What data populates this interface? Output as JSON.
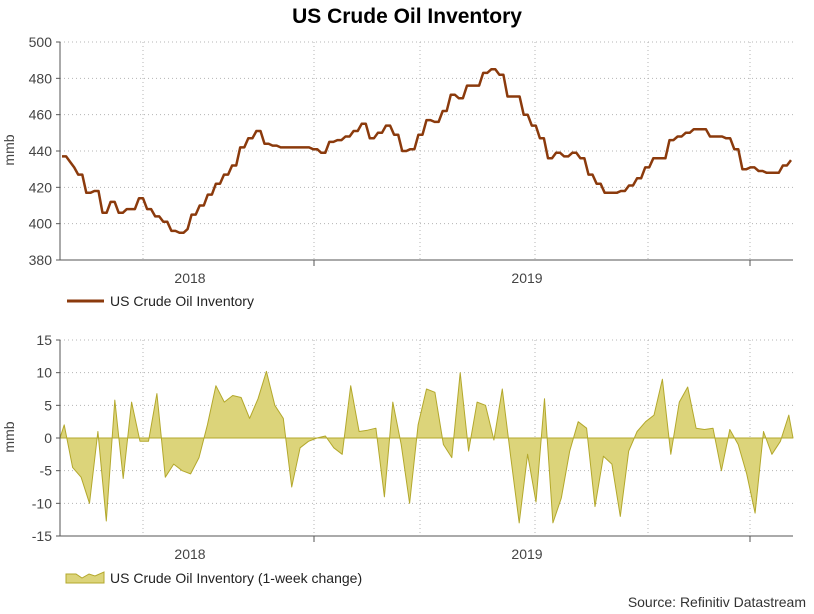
{
  "title": "US Crude Oil Inventory",
  "source": "Source: Refinitiv Datastream",
  "colors": {
    "level_line": "#8b3a0c",
    "change_fill": "#dcd47a",
    "change_stroke": "#b3a82c"
  },
  "chart_data": [
    {
      "type": "line",
      "ylabel": "mmb",
      "ylim": [
        380,
        500
      ],
      "yticks": [
        "380",
        "400",
        "420",
        "440",
        "460",
        "480",
        "500"
      ],
      "xticks": [
        "2018",
        "2019"
      ],
      "x_range": [
        "2017-09",
        "2019-10"
      ],
      "grid": true,
      "legend_position": "bottom-left",
      "series": [
        {
          "name": "US Crude Oil Inventory",
          "values": [
            437,
            437,
            434,
            431,
            427,
            427,
            417,
            417,
            418,
            418,
            406,
            406,
            412,
            412,
            406,
            406,
            408,
            408,
            408,
            414,
            414,
            408,
            408,
            404,
            404,
            401,
            401,
            396,
            396,
            395,
            395,
            397,
            405,
            405,
            410,
            410,
            416,
            416,
            422,
            422,
            427,
            427,
            432,
            432,
            442,
            442,
            447,
            447,
            451,
            451,
            444,
            444,
            443,
            443,
            442,
            442,
            442,
            442,
            442,
            442,
            442,
            442,
            441,
            441,
            439,
            439,
            445,
            445,
            446,
            446,
            448,
            448,
            451,
            451,
            455,
            455,
            447,
            447,
            450,
            450,
            454,
            454,
            449,
            449,
            440,
            440,
            441,
            441,
            449,
            449,
            457,
            457,
            456,
            456,
            462,
            462,
            471,
            471,
            469,
            469,
            476,
            476,
            476,
            476,
            483,
            483,
            485,
            485,
            482,
            482,
            470,
            470,
            470,
            470,
            460,
            460,
            454,
            454,
            447,
            447,
            436,
            436,
            439,
            439,
            437,
            437,
            439,
            439,
            436,
            436,
            427,
            427,
            422,
            422,
            417,
            417,
            417,
            417,
            418,
            418,
            421,
            421,
            425,
            425,
            431,
            431,
            436,
            436,
            436,
            436,
            446,
            446,
            448,
            448,
            450,
            450,
            452,
            452,
            452,
            452,
            448,
            448,
            448,
            448,
            447,
            447,
            441,
            441,
            430,
            430,
            431,
            431,
            429,
            429,
            428,
            428,
            428,
            428,
            432,
            432,
            435
          ]
        }
      ]
    },
    {
      "type": "area",
      "ylabel": "mmb",
      "ylim": [
        -15,
        15
      ],
      "yticks": [
        "-15",
        "-10",
        "-5",
        "0",
        "5",
        "10",
        "15"
      ],
      "xticks": [
        "2018",
        "2019"
      ],
      "x_range": [
        "2017-09",
        "2019-10"
      ],
      "grid": true,
      "legend_position": "bottom-left",
      "series": [
        {
          "name": "US Crude Oil Inventory (1-week change)",
          "values": [
            2.0,
            -4.5,
            -6.0,
            -10.0,
            1.0,
            -12.7,
            5.8,
            -6.2,
            5.5,
            -0.5,
            -0.5,
            6.8,
            -6.0,
            -4.0,
            -5.0,
            -5.5,
            -3.0,
            2.0,
            8.0,
            5.5,
            6.5,
            6.2,
            3.0,
            6.0,
            10.2,
            5.0,
            3.0,
            -7.5,
            -1.5,
            -0.5,
            0.0,
            0.3,
            -1.5,
            -2.5,
            8.0,
            1.0,
            1.2,
            1.5,
            -9.0,
            5.5,
            -1.0,
            -10.0,
            2.0,
            7.5,
            7.0,
            -1.0,
            -3.0,
            10.0,
            -2.0,
            5.5,
            5.0,
            -0.3,
            7.5,
            -3.0,
            -13.0,
            -2.5,
            -9.8,
            6.0,
            -13.0,
            -9.2,
            -2.0,
            2.5,
            1.5,
            -10.5,
            -2.8,
            -4.0,
            -12.0,
            -2.0,
            1.0,
            2.5,
            3.5,
            9.0,
            -2.5,
            5.5,
            7.8,
            1.5,
            1.3,
            1.5,
            -5.0,
            1.3,
            -1.0,
            -5.5,
            -11.5,
            1.0,
            -2.5,
            -0.5,
            3.5
          ]
        }
      ]
    }
  ]
}
